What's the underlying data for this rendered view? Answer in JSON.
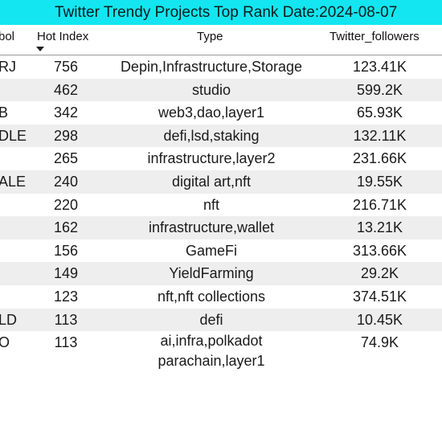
{
  "banner": {
    "title": "Twitter Trendy Projects Top Rank Date:2024-08-07",
    "bg": "#13e6f0"
  },
  "table": {
    "columns": {
      "symbol": "bol",
      "hot_index": "Hot Index",
      "type": "Type",
      "followers": "Twitter_followers"
    },
    "sort": {
      "column": "Hot Index",
      "direction": "descending",
      "icon": "sort-down-icon"
    },
    "rows": [
      {
        "symbol": "RJ",
        "hot_index": "756",
        "type": "Depin,Infrastructure,Storage",
        "followers": "123.41K"
      },
      {
        "symbol": "",
        "hot_index": "462",
        "type": "studio",
        "followers": "599.2K"
      },
      {
        "symbol": "B",
        "hot_index": "342",
        "type": "web3,dao,layer1",
        "followers": "65.93K"
      },
      {
        "symbol": "DLE",
        "hot_index": "298",
        "type": "defi,lsd,staking",
        "followers": "132.11K"
      },
      {
        "symbol": "",
        "hot_index": "265",
        "type": "infrastructure,layer2",
        "followers": "231.66K"
      },
      {
        "symbol": "ALE",
        "hot_index": "240",
        "type": "digital art,nft",
        "followers": "19.55K"
      },
      {
        "symbol": "",
        "hot_index": "220",
        "type": "nft",
        "followers": "216.71K"
      },
      {
        "symbol": "",
        "hot_index": "162",
        "type": "infrastructure,wallet",
        "followers": "13.21K"
      },
      {
        "symbol": "",
        "hot_index": "156",
        "type": "GameFi",
        "followers": "313.66K"
      },
      {
        "symbol": "",
        "hot_index": "149",
        "type": "YieldFarming",
        "followers": "29.2K"
      },
      {
        "symbol": "",
        "hot_index": "123",
        "type": "nft,nft collections",
        "followers": "374.51K"
      },
      {
        "symbol": "LD",
        "hot_index": "113",
        "type": "defi",
        "followers": "10.45K"
      },
      {
        "symbol": "O",
        "hot_index": "113",
        "type": "ai,infra,polkadot parachain,layer1",
        "followers": "74.9K"
      }
    ]
  }
}
